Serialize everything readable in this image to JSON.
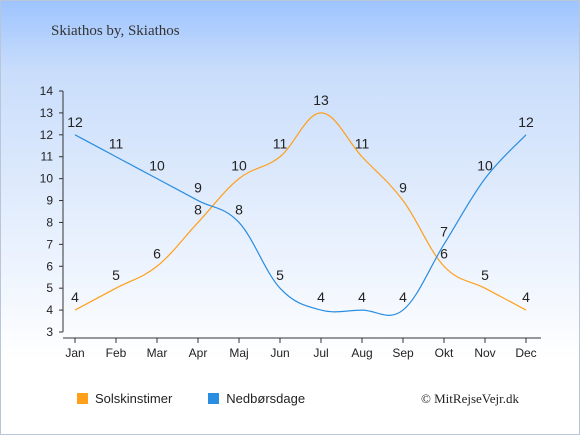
{
  "colors": {
    "sun": "#ff9f1a",
    "rain": "#2b8de0",
    "axis": "#333333"
  },
  "chart_data": {
    "type": "line",
    "title": "Skiathos by, Skiathos",
    "categories": [
      "Jan",
      "Feb",
      "Mar",
      "Apr",
      "Maj",
      "Jun",
      "Jul",
      "Aug",
      "Sep",
      "Okt",
      "Nov",
      "Dec"
    ],
    "ylim": [
      3,
      14
    ],
    "yticks": [
      3,
      4,
      5,
      6,
      7,
      8,
      9,
      10,
      11,
      12,
      13,
      14
    ],
    "grid": false,
    "legend_position": "bottom",
    "series": [
      {
        "name": "Solskinstimer",
        "color": "#ff9f1a",
        "values": [
          4,
          5,
          6,
          8,
          10,
          11,
          13,
          11,
          9,
          6,
          5,
          4
        ]
      },
      {
        "name": "Nedbørsdage",
        "color": "#2b8de0",
        "values": [
          12,
          11,
          10,
          9,
          8,
          5,
          4,
          4,
          4,
          7,
          10,
          12
        ]
      }
    ]
  },
  "footer": {
    "copyright": "© MitRejseVejr.dk"
  }
}
